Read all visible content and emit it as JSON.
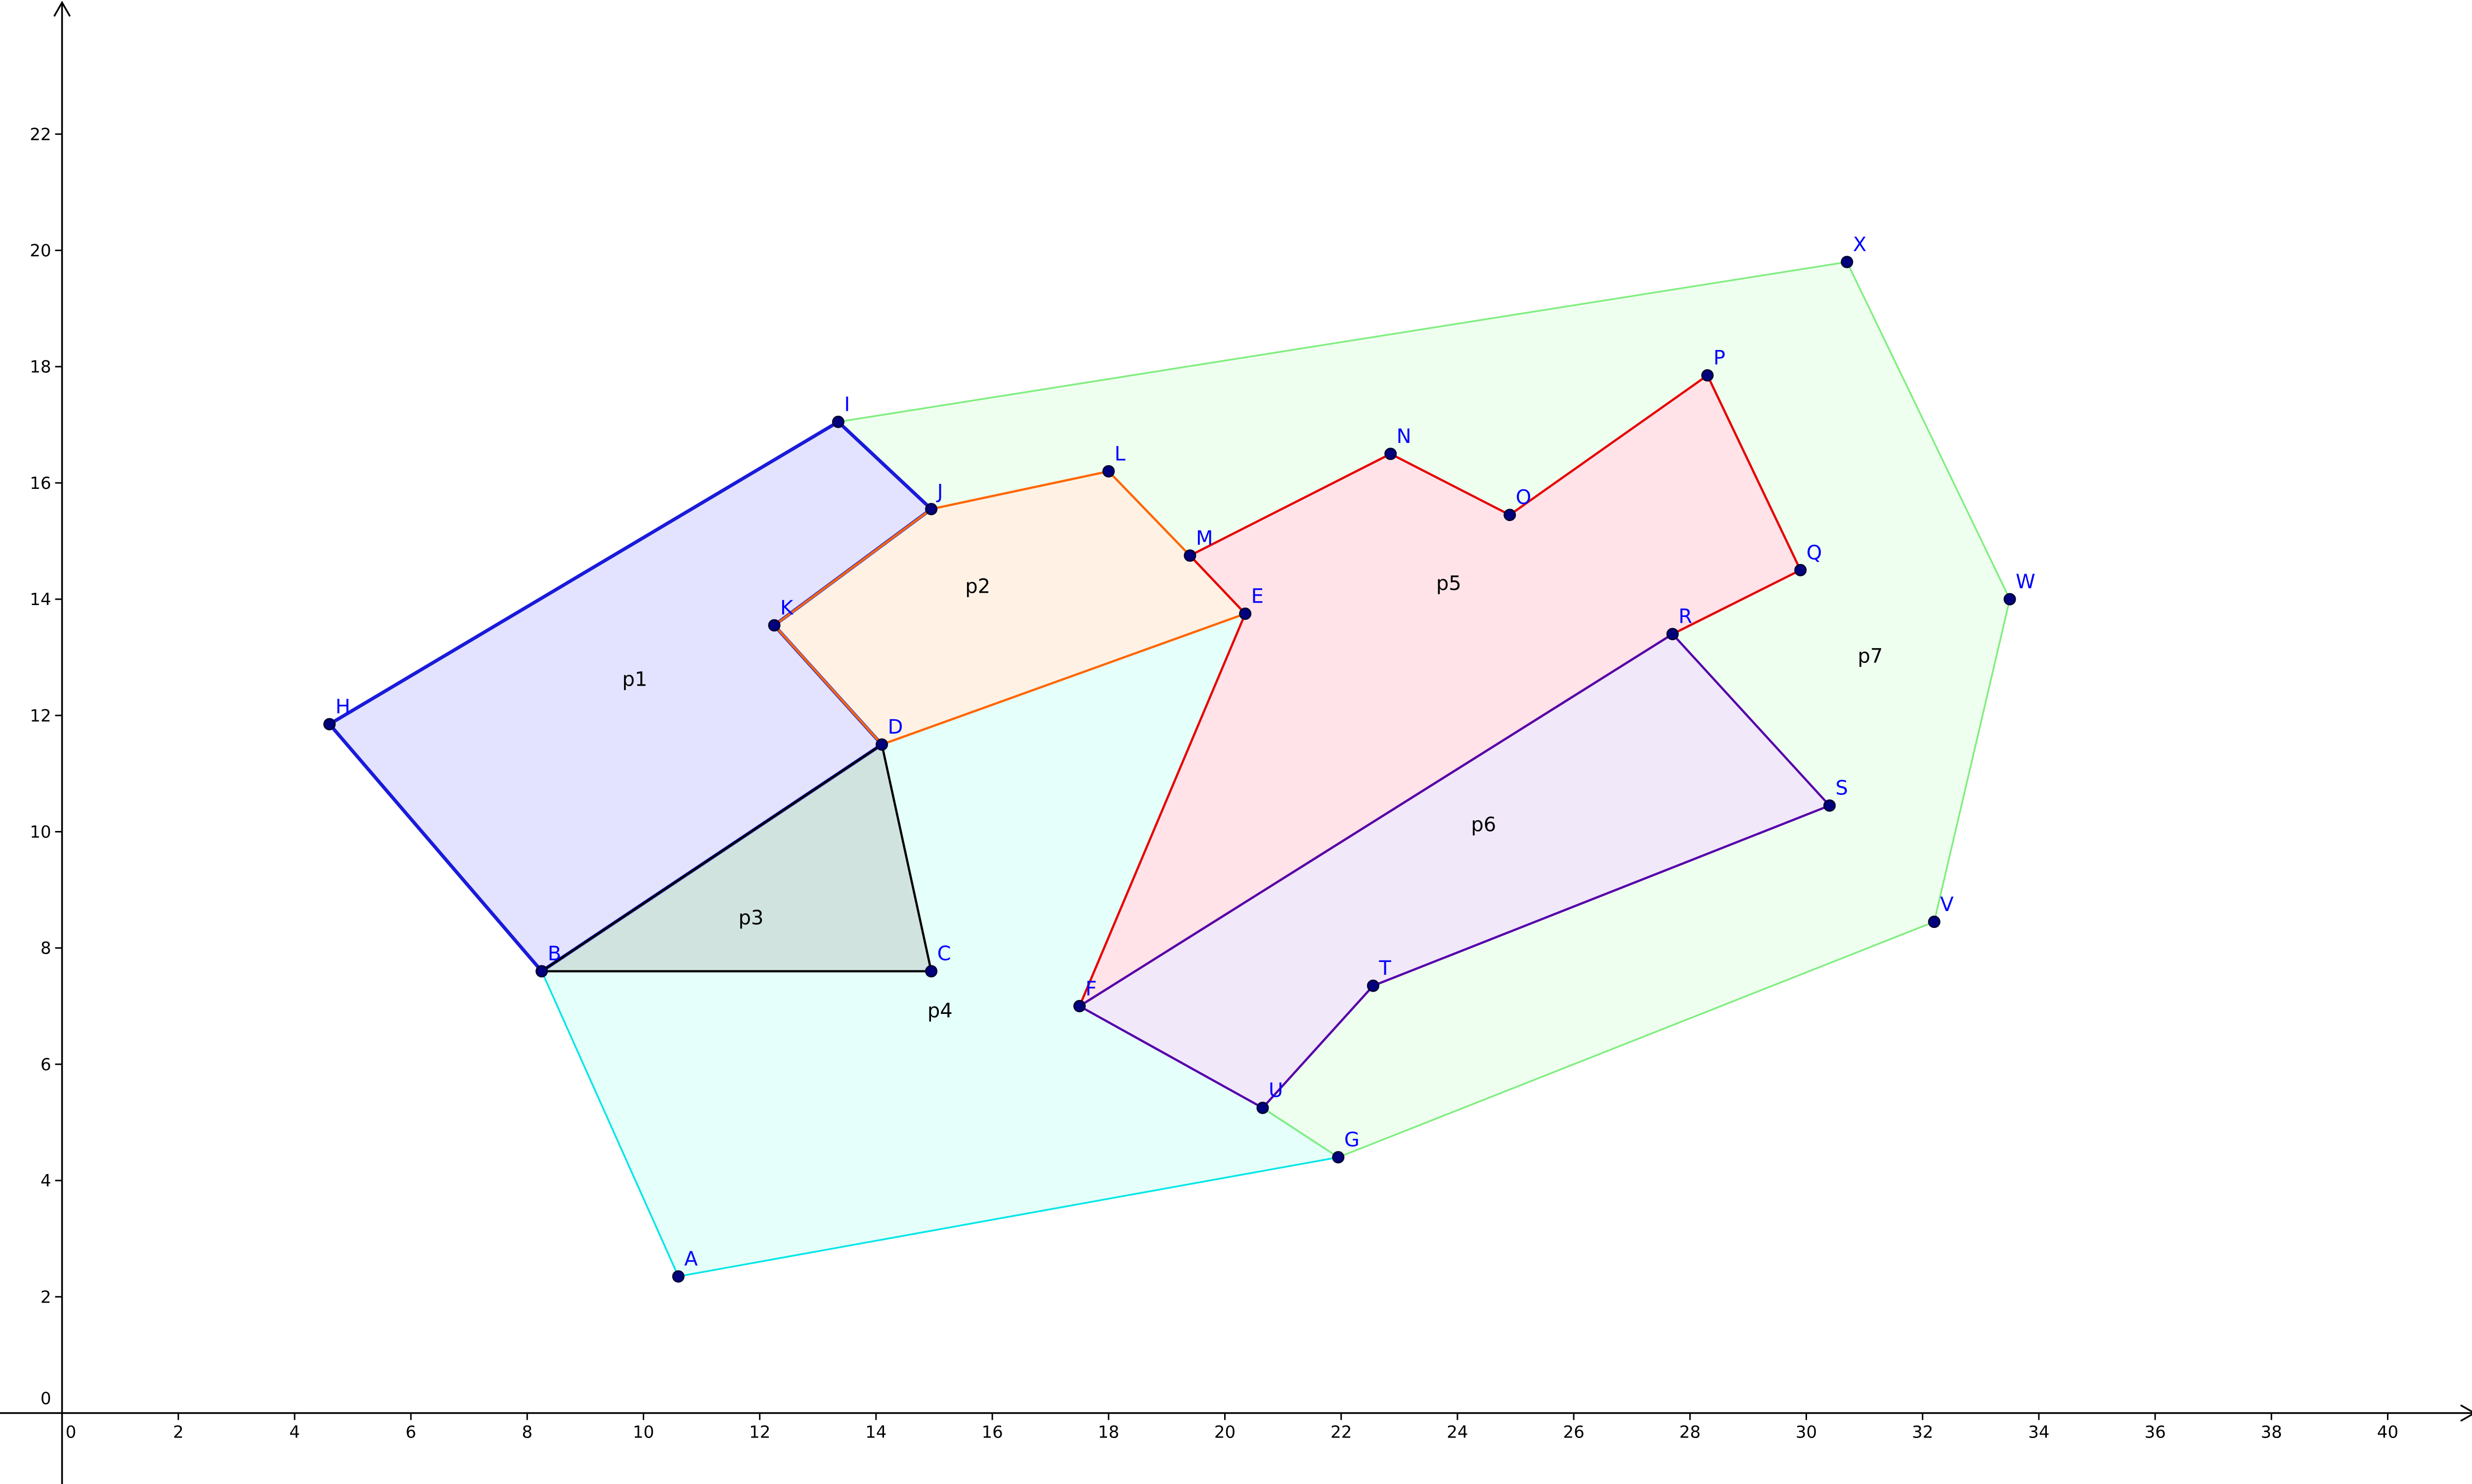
{
  "axes": {
    "x_ticks": [
      0,
      2,
      4,
      6,
      8,
      10,
      12,
      14,
      16,
      18,
      20,
      22,
      24,
      26,
      28,
      30,
      32,
      34,
      36,
      38,
      40
    ],
    "y_ticks": [
      0,
      2,
      4,
      6,
      8,
      10,
      12,
      14,
      16,
      18,
      20,
      22
    ]
  },
  "points": [
    {
      "name": "A",
      "x": 10.6,
      "y": 2.35
    },
    {
      "name": "B",
      "x": 8.25,
      "y": 7.6
    },
    {
      "name": "C",
      "x": 14.95,
      "y": 7.6
    },
    {
      "name": "D",
      "x": 14.1,
      "y": 11.5
    },
    {
      "name": "E",
      "x": 20.35,
      "y": 13.75
    },
    {
      "name": "F",
      "x": 17.5,
      "y": 7.0
    },
    {
      "name": "G",
      "x": 21.95,
      "y": 4.4
    },
    {
      "name": "H",
      "x": 4.6,
      "y": 11.85
    },
    {
      "name": "I",
      "x": 13.35,
      "y": 17.05
    },
    {
      "name": "J",
      "x": 14.95,
      "y": 15.55
    },
    {
      "name": "K",
      "x": 12.25,
      "y": 13.55
    },
    {
      "name": "L",
      "x": 18.0,
      "y": 16.2
    },
    {
      "name": "M",
      "x": 19.4,
      "y": 14.75
    },
    {
      "name": "N",
      "x": 22.85,
      "y": 16.5
    },
    {
      "name": "O",
      "x": 24.9,
      "y": 15.45
    },
    {
      "name": "P",
      "x": 28.3,
      "y": 17.85
    },
    {
      "name": "Q",
      "x": 29.9,
      "y": 14.5
    },
    {
      "name": "R",
      "x": 27.7,
      "y": 13.4
    },
    {
      "name": "S",
      "x": 30.4,
      "y": 10.45
    },
    {
      "name": "T",
      "x": 22.55,
      "y": 7.35
    },
    {
      "name": "U",
      "x": 20.65,
      "y": 5.25
    },
    {
      "name": "V",
      "x": 32.2,
      "y": 8.45
    },
    {
      "name": "W",
      "x": 33.5,
      "y": 14.0
    },
    {
      "name": "X",
      "x": 30.7,
      "y": 19.8
    }
  ],
  "polygons": [
    {
      "name": "p4",
      "label": "p4",
      "vertices": [
        "B",
        "D",
        "E",
        "F",
        "U",
        "G",
        "A"
      ],
      "fill": "#00ffcc",
      "fill_opacity": 0.1,
      "stroke": "#00e6e6",
      "label_at": [
        15.1,
        6.9
      ]
    },
    {
      "name": "p7",
      "label": "p7",
      "vertices": [
        "I",
        "X",
        "W",
        "V",
        "G",
        "U",
        "T",
        "S",
        "R",
        "Q",
        "P",
        "O",
        "N",
        "M",
        "L",
        "J"
      ],
      "fill": "#66ff66",
      "fill_opacity": 0.1,
      "stroke": "#80ee80",
      "label_at": [
        31.1,
        13.0
      ]
    },
    {
      "name": "p1",
      "label": "p1",
      "vertices": [
        "H",
        "I",
        "J",
        "K",
        "D",
        "B"
      ],
      "fill": "#6666ff",
      "fill_opacity": 0.18,
      "stroke": "#1a1adb",
      "label_at": [
        9.85,
        12.6
      ]
    },
    {
      "name": "p2",
      "label": "p2",
      "vertices": [
        "J",
        "L",
        "M",
        "E",
        "D",
        "K"
      ],
      "fill": "#ffcc99",
      "fill_opacity": 0.25,
      "stroke": "#ff6600",
      "label_at": [
        15.75,
        14.2
      ]
    },
    {
      "name": "p3",
      "label": "p3",
      "vertices": [
        "B",
        "C",
        "D"
      ],
      "fill": "#999999",
      "fill_opacity": 0.28,
      "stroke": "#000000",
      "label_at": [
        11.85,
        8.5
      ]
    },
    {
      "name": "p5",
      "label": "p5",
      "vertices": [
        "M",
        "N",
        "O",
        "P",
        "Q",
        "R",
        "F",
        "E"
      ],
      "fill": "#ff6680",
      "fill_opacity": 0.18,
      "stroke": "#e60000",
      "label_at": [
        23.85,
        14.25
      ]
    },
    {
      "name": "p6",
      "label": "p6",
      "vertices": [
        "F",
        "R",
        "S",
        "T",
        "U"
      ],
      "fill": "#b380e6",
      "fill_opacity": 0.18,
      "stroke": "#5500aa",
      "label_at": [
        24.45,
        10.1
      ]
    }
  ],
  "colors": {
    "point_fill": "#00007f",
    "point_label": "#0000ff",
    "axis": "#000000"
  }
}
